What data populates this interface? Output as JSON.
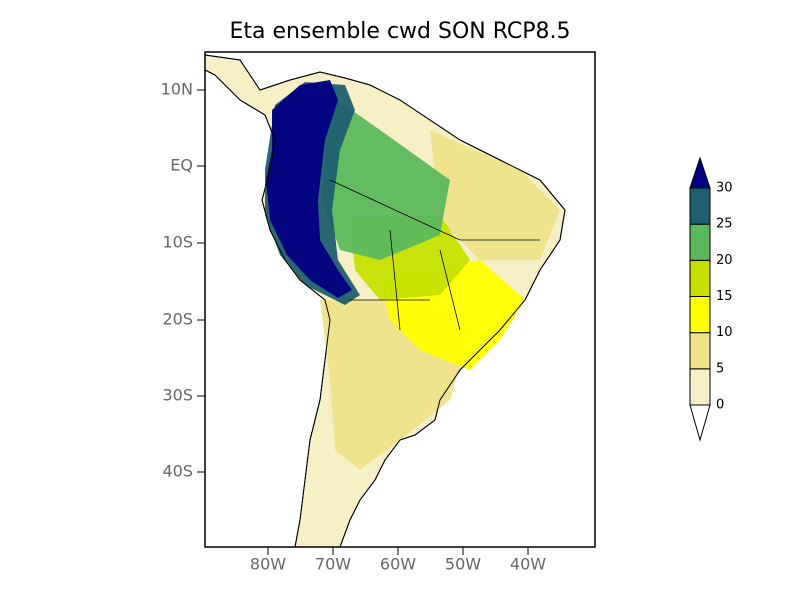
{
  "title": "Eta ensemble cwd SON RCP8.5",
  "lat_labels": [
    "10N",
    "EQ",
    "10S",
    "20S",
    "30S",
    "40S"
  ],
  "lon_labels": [
    "80W",
    "70W",
    "60W",
    "50W",
    "40W"
  ],
  "colorbar": {
    "levels": [
      0,
      5,
      10,
      15,
      20,
      25,
      30
    ],
    "colors": [
      "#ffffff",
      "#f7f0c6",
      "#eee38a",
      "#ffff00",
      "#c5e000",
      "#5cb85c",
      "#1f5f6f",
      "#000080"
    ]
  }
}
